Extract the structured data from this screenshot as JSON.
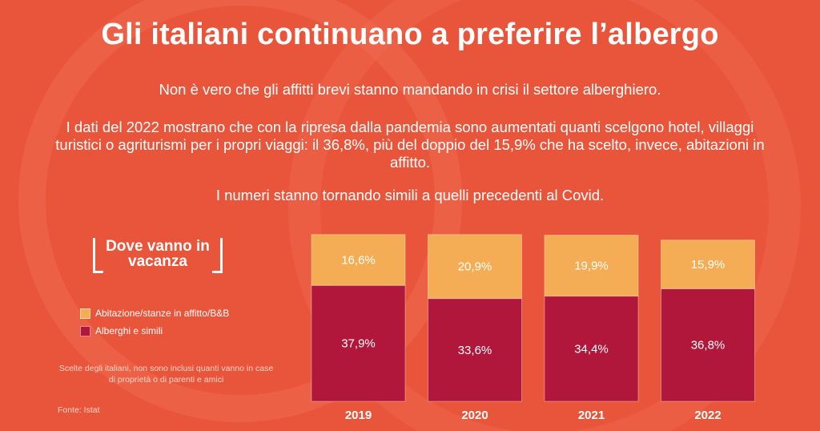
{
  "title": "Gli italiani continuano a preferire l’albergo",
  "intro": {
    "p1": "Non è vero che gli affitti brevi stanno mandando in crisi il settore alberghiero.",
    "p2": "I dati del 2022 mostrano che con la ripresa dalla pandemia sono aumentati quanti scelgono hotel, villaggi turistici o agriturismi per i propri viaggi: il 36,8%, più del doppio del 15,9% che ha scelto, invece, abitazioni in affitto.",
    "p3": "I numeri stanno tornando simili a quelli precedenti al Covid."
  },
  "legend": {
    "title": "Dove vanno in vacanza",
    "items": [
      {
        "label": "Abitazione/stanze in affitto/B&B",
        "color": "#f5ad55"
      },
      {
        "label": "Alberghi e simili",
        "color": "#b0173a"
      }
    ]
  },
  "note": "Scelte degli italiani, non sono inclusi quanti vanno in case di proprietà o di parenti e amici",
  "source": "Fonte: Istat",
  "colors": {
    "background": "#e9553a",
    "rentals": "#f5ad55",
    "hotels": "#b0173a"
  },
  "chart_data": {
    "type": "bar",
    "stacked": true,
    "categories": [
      "2019",
      "2020",
      "2021",
      "2022"
    ],
    "series": [
      {
        "name": "Alberghi e simili",
        "values": [
          37.9,
          33.6,
          34.4,
          36.8
        ],
        "labels": [
          "37,9%",
          "33,6%",
          "34,4%",
          "36,8%"
        ],
        "color": "#b0173a"
      },
      {
        "name": "Abitazione/stanze in affitto/B&B",
        "values": [
          16.6,
          20.9,
          19.9,
          15.9
        ],
        "labels": [
          "16,6%",
          "20,9%",
          "19,9%",
          "15,9%"
        ],
        "color": "#f5ad55"
      }
    ],
    "title": "Dove vanno in vacanza",
    "xlabel": "",
    "ylabel": "",
    "grid": false,
    "legend": "left"
  }
}
